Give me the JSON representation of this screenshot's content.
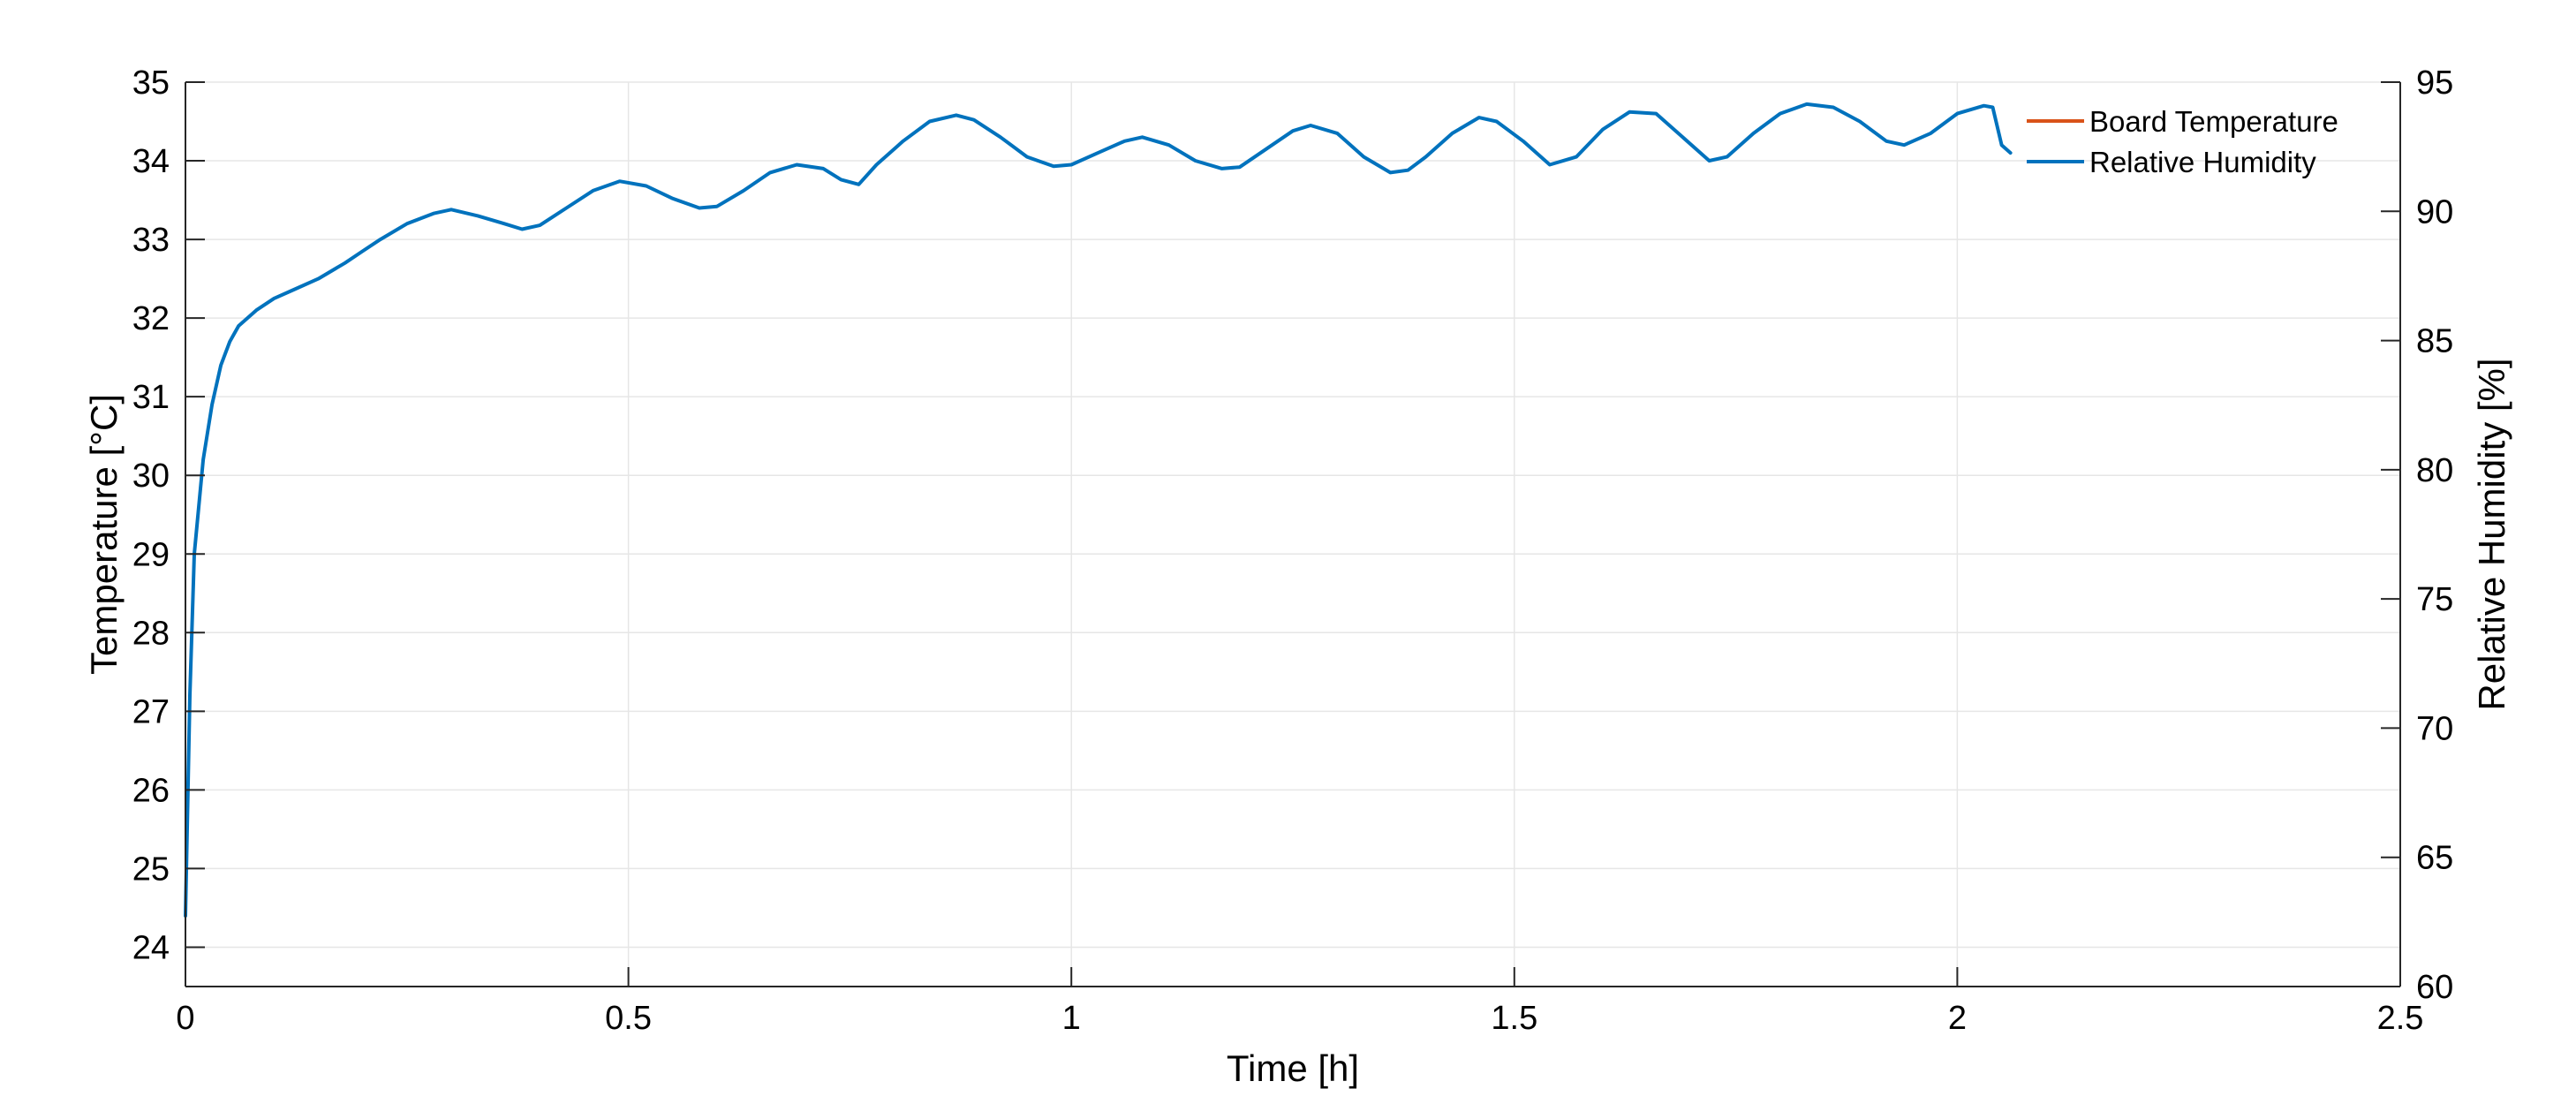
{
  "chart_data": {
    "type": "line",
    "title": "",
    "xlabel": "Time [h]",
    "ylabel": "Temperature [°C]",
    "y2label": "Relative Humidity [%]",
    "xlim": [
      0,
      2.5
    ],
    "ylim": [
      23.5,
      35
    ],
    "y2lim": [
      60,
      95
    ],
    "x_ticks": [
      "0",
      "0.5",
      "1",
      "1.5",
      "2",
      "2.5"
    ],
    "y_ticks": [
      "24",
      "25",
      "26",
      "27",
      "28",
      "29",
      "30",
      "31",
      "32",
      "33",
      "34",
      "35"
    ],
    "y2_ticks": [
      "60",
      "65",
      "70",
      "75",
      "80",
      "85",
      "90",
      "95"
    ],
    "grid": true,
    "legend_position": "top-right",
    "colors": {
      "board_temperature": "#D95319",
      "relative_humidity": "#0072BD",
      "grid": "#E6E6E6",
      "axis": "#262626"
    },
    "series": [
      {
        "name": "Board Temperature",
        "axis": "left",
        "x": [],
        "y": []
      },
      {
        "name": "Relative Humidity",
        "axis": "left",
        "x": [
          0,
          0.005,
          0.01,
          0.02,
          0.03,
          0.04,
          0.05,
          0.06,
          0.08,
          0.1,
          0.12,
          0.15,
          0.18,
          0.2,
          0.22,
          0.25,
          0.28,
          0.3,
          0.33,
          0.36,
          0.38,
          0.4,
          0.43,
          0.46,
          0.49,
          0.52,
          0.55,
          0.58,
          0.6,
          0.63,
          0.66,
          0.69,
          0.72,
          0.74,
          0.76,
          0.78,
          0.81,
          0.84,
          0.87,
          0.89,
          0.92,
          0.95,
          0.98,
          1.0,
          1.03,
          1.06,
          1.08,
          1.11,
          1.14,
          1.17,
          1.19,
          1.22,
          1.25,
          1.27,
          1.3,
          1.33,
          1.36,
          1.38,
          1.4,
          1.43,
          1.46,
          1.48,
          1.51,
          1.54,
          1.57,
          1.6,
          1.63,
          1.66,
          1.69,
          1.72,
          1.74,
          1.77,
          1.8,
          1.83,
          1.86,
          1.89,
          1.92,
          1.94,
          1.97,
          2.0,
          2.03,
          2.04,
          2.05,
          2.06
        ],
        "y": [
          24.4,
          27.2,
          29.0,
          30.2,
          30.9,
          31.4,
          31.7,
          31.9,
          32.1,
          32.25,
          32.35,
          32.5,
          32.7,
          32.85,
          33.0,
          33.2,
          33.33,
          33.38,
          33.3,
          33.2,
          33.13,
          33.18,
          33.4,
          33.62,
          33.74,
          33.68,
          33.52,
          33.4,
          33.42,
          33.62,
          33.85,
          33.95,
          33.9,
          33.76,
          33.7,
          33.95,
          34.25,
          34.5,
          34.58,
          34.52,
          34.3,
          34.05,
          33.93,
          33.95,
          34.1,
          34.25,
          34.3,
          34.2,
          34.0,
          33.9,
          33.92,
          34.15,
          34.38,
          34.45,
          34.35,
          34.05,
          33.85,
          33.88,
          34.05,
          34.35,
          34.55,
          34.5,
          34.25,
          33.95,
          34.05,
          34.4,
          34.62,
          34.6,
          34.3,
          34.0,
          34.05,
          34.35,
          34.6,
          34.72,
          34.68,
          34.5,
          34.25,
          34.2,
          34.35,
          34.6,
          34.7,
          34.68,
          34.2,
          34.1
        ]
      }
    ]
  }
}
